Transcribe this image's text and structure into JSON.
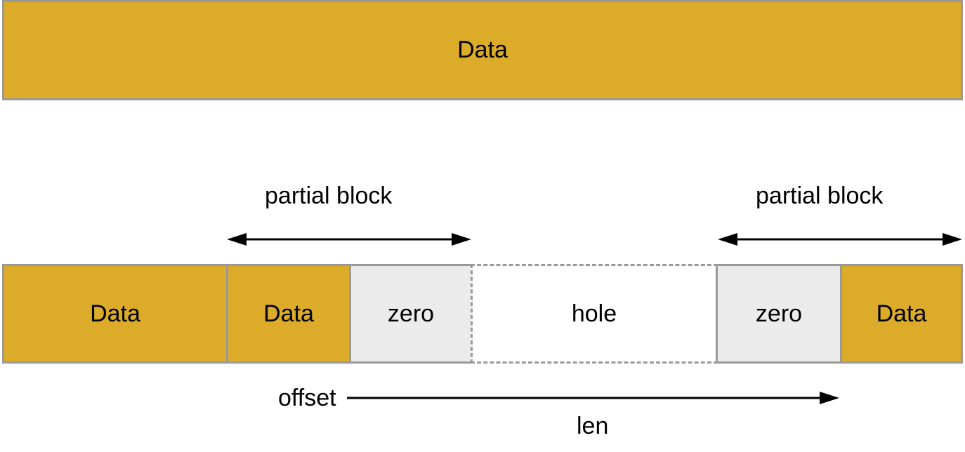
{
  "top_bar": {
    "label": "Data"
  },
  "segments": {
    "data_1": "Data",
    "data_2": "Data",
    "zero_1": "zero",
    "hole": "hole",
    "zero_2": "zero",
    "data_3": "Data"
  },
  "annotations": {
    "partial_block_left": "partial block",
    "partial_block_right": "partial block",
    "offset": "offset",
    "len": "len"
  },
  "colors": {
    "data_fill": "#dcab29",
    "zero_fill": "#ebebeb",
    "hole_fill": "#ffffff",
    "border": "#999999",
    "arrow": "#000000"
  }
}
